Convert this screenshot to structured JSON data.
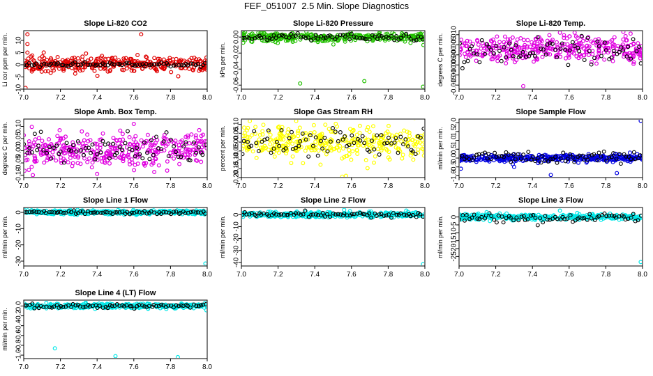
{
  "figure": {
    "title": "FEF_051007  2.5 Min. Slope Diagnostics"
  },
  "colors": {
    "red": "#e00000",
    "green": "#22c000",
    "magenta": "#e000e0",
    "yellow": "#ffff00",
    "blue": "#0000e0",
    "cyan": "#00e8e8",
    "black": "#000000"
  },
  "chart_data": [
    {
      "type": "scatter",
      "title": "Slope Li-820 CO2",
      "ylabel": "Li cor ppm per min.",
      "xlabel": "",
      "color": "red",
      "xlim": [
        7.0,
        8.0
      ],
      "ylim": [
        -10,
        14
      ],
      "x_ticks": [
        "7.0",
        "7.2",
        "7.4",
        "7.6",
        "7.8",
        "8.0"
      ],
      "y_ticks": [
        -10,
        -5,
        0,
        5,
        10
      ],
      "y_tick_labels": [
        "-10",
        "-5",
        "0",
        "5",
        "10"
      ],
      "series": [
        {
          "name": "colored",
          "center": 0.3,
          "spread": 1.8
        },
        {
          "name": "black",
          "center": 0.2,
          "spread": 0.5
        }
      ],
      "outliers": [
        [
          7.01,
          -9.5
        ],
        [
          7.02,
          12.5
        ],
        [
          7.02,
          8.5
        ],
        [
          7.02,
          5
        ],
        [
          7.64,
          12.5
        ],
        [
          7.62,
          4
        ],
        [
          7.6,
          -2.5
        ],
        [
          7.67,
          3
        ]
      ]
    },
    {
      "type": "scatter",
      "title": "Slope Li-820 Pressure",
      "ylabel": "kPa per min.",
      "xlabel": "",
      "color": "green",
      "xlim": [
        7.0,
        8.0
      ],
      "ylim": [
        -0.065,
        0.008
      ],
      "x_ticks": [
        "7.0",
        "7.2",
        "7.4",
        "7.6",
        "7.8",
        "8.0"
      ],
      "y_ticks": [
        -0.06,
        -0.04,
        -0.02,
        0
      ],
      "y_tick_labels": [
        "-0.06",
        "-0.04",
        "-0.02",
        "0.00"
      ],
      "series": [
        {
          "name": "colored",
          "center": 0.0,
          "spread": 0.0035
        },
        {
          "name": "black",
          "center": 0.0,
          "spread": 0.0025
        }
      ],
      "outliers": [
        [
          7.32,
          -0.058
        ],
        [
          7.67,
          -0.055
        ],
        [
          7.99,
          -0.062
        ],
        [
          7.01,
          -0.007
        ],
        [
          7.02,
          0.006
        ]
      ]
    },
    {
      "type": "scatter",
      "title": "Slope Li-820 Temp.",
      "ylabel": "degrees C per min.",
      "xlabel": "",
      "color": "magenta",
      "xlim": [
        7.0,
        8.0
      ],
      "ylim": [
        -0.017,
        0.012
      ],
      "x_ticks": [
        "7.0",
        "7.2",
        "7.4",
        "7.6",
        "7.8",
        "8.0"
      ],
      "y_ticks": [
        -0.015,
        -0.01,
        -0.005,
        0,
        0.005,
        0.01
      ],
      "y_tick_labels": [
        "-0.015",
        "-0.010",
        "-0.005",
        "0.000",
        "0.005",
        "0.010"
      ],
      "series": [
        {
          "name": "colored",
          "center": 0.003,
          "spread": 0.004
        },
        {
          "name": "black",
          "center": 0.002,
          "spread": 0.004
        }
      ],
      "outliers": [
        [
          7.35,
          -0.0155
        ],
        [
          7.63,
          0.011
        ],
        [
          7.55,
          0.011
        ]
      ]
    },
    {
      "type": "scatter",
      "title": "Slope Amb. Box Temp.",
      "ylabel": "degrees C per min.",
      "xlabel": "",
      "color": "magenta",
      "xlim": [
        7.0,
        8.0
      ],
      "ylim": [
        -0.11,
        0.13
      ],
      "x_ticks": [
        "7.0",
        "7.2",
        "7.4",
        "7.6",
        "7.8",
        "8.0"
      ],
      "y_ticks": [
        -0.1,
        -0.05,
        0,
        0.05,
        0.1
      ],
      "y_tick_labels": [
        "-0.10",
        "-0.05",
        "0.00",
        "0.05",
        "0.10"
      ],
      "series": [
        {
          "name": "colored",
          "center": 0.005,
          "spread": 0.045
        },
        {
          "name": "black",
          "center": 0.01,
          "spread": 0.04
        }
      ],
      "outliers": [
        [
          7.6,
          0.11
        ],
        [
          7.05,
          -0.1
        ],
        [
          7.4,
          -0.095
        ]
      ]
    },
    {
      "type": "scatter",
      "title": "Slope Gas Stream RH",
      "ylabel": "percent per min.",
      "xlabel": "",
      "color": "yellow",
      "xlim": [
        7.0,
        8.0
      ],
      "ylim": [
        -0.2,
        0.13
      ],
      "x_ticks": [
        "7.0",
        "7.2",
        "7.4",
        "7.6",
        "7.8",
        "8.0"
      ],
      "y_ticks": [
        -0.2,
        -0.15,
        -0.1,
        -0.05,
        0,
        0.05,
        0.1
      ],
      "y_tick_labels": [
        "-0.20",
        "-0.15",
        "-0.10",
        "-0.05",
        "0.00",
        "0.05",
        "0.10"
      ],
      "series": [
        {
          "name": "colored",
          "center": 0.0,
          "spread": 0.055
        },
        {
          "name": "black",
          "center": 0.0,
          "spread": 0.045
        }
      ],
      "outliers": [
        [
          7.55,
          -0.195
        ],
        [
          7.57,
          -0.19
        ]
      ]
    },
    {
      "type": "scatter",
      "title": "Slope Sample Flow",
      "ylabel": "ml/min per min.",
      "xlabel": "",
      "color": "blue",
      "xlim": [
        7.0,
        8.0
      ],
      "ylim": [
        -1.1,
        2.2
      ],
      "x_ticks": [
        "7.0",
        "7.2",
        "7.4",
        "7.6",
        "7.8",
        "8.0"
      ],
      "y_ticks": [
        -1,
        -0.5,
        0,
        0.5,
        1,
        1.5,
        2
      ],
      "y_tick_labels": [
        "-1.0",
        "-0.5",
        "0.0",
        "0.5",
        "1.0",
        "1.5",
        "2.0"
      ],
      "series": [
        {
          "name": "colored",
          "center": 0.0,
          "spread": 0.12
        },
        {
          "name": "black",
          "center": 0.05,
          "spread": 0.2
        }
      ],
      "outliers": [
        [
          7.99,
          2.1
        ],
        [
          7.5,
          -0.95
        ],
        [
          7.86,
          -0.85
        ],
        [
          7.01,
          -0.6
        ],
        [
          7.3,
          -0.5
        ]
      ]
    },
    {
      "type": "scatter",
      "title": "Slope Line 1 Flow",
      "ylabel": "ml/min per min.",
      "xlabel": "",
      "color": "cyan",
      "xlim": [
        7.0,
        8.0
      ],
      "ylim": [
        -33,
        3
      ],
      "x_ticks": [
        "7.0",
        "7.2",
        "7.4",
        "7.6",
        "7.8",
        "8.0"
      ],
      "y_ticks": [
        -30,
        -20,
        -10,
        0
      ],
      "y_tick_labels": [
        "-30",
        "-20",
        "-10",
        "0"
      ],
      "series": [
        {
          "name": "colored",
          "center": 0.0,
          "spread": 0.8
        },
        {
          "name": "black",
          "center": 0.0,
          "spread": 0.6
        }
      ],
      "outliers": [
        [
          7.99,
          -31.5
        ]
      ]
    },
    {
      "type": "scatter",
      "title": "Slope Line 2 Flow",
      "ylabel": "ml/min per min.",
      "xlabel": "",
      "color": "cyan",
      "xlim": [
        7.0,
        8.0
      ],
      "ylim": [
        -43,
        6
      ],
      "x_ticks": [
        "7.0",
        "7.2",
        "7.4",
        "7.6",
        "7.8",
        "8.0"
      ],
      "y_ticks": [
        -40,
        -30,
        -20,
        -10,
        0
      ],
      "y_tick_labels": [
        "-40",
        "-30",
        "-20",
        "-10",
        "0"
      ],
      "series": [
        {
          "name": "colored",
          "center": 0.0,
          "spread": 1.4
        },
        {
          "name": "black",
          "center": 0.0,
          "spread": 1.4
        }
      ],
      "outliers": [
        [
          7.99,
          -41.5
        ],
        [
          7.56,
          4
        ]
      ]
    },
    {
      "type": "scatter",
      "title": "Slope Line 3 Flow",
      "ylabel": "ml/min per min.",
      "xlabel": "",
      "color": "cyan",
      "xlim": [
        7.0,
        8.0
      ],
      "ylim": [
        -31,
        6
      ],
      "x_ticks": [
        "7.0",
        "7.2",
        "7.4",
        "7.6",
        "7.8",
        "8.0"
      ],
      "y_ticks": [
        -25,
        -20,
        -15,
        -10,
        -5,
        0
      ],
      "y_tick_labels": [
        "-25",
        "-20",
        "-15",
        "-10",
        "-5",
        "0"
      ],
      "series": [
        {
          "name": "colored",
          "center": 0.0,
          "spread": 1.1
        },
        {
          "name": "black",
          "center": -0.5,
          "spread": 1.8
        }
      ],
      "outliers": [
        [
          7.99,
          -28.5
        ],
        [
          7.15,
          3
        ],
        [
          7.55,
          4
        ]
      ]
    },
    {
      "type": "scatter",
      "title": "Slope Line 4 (LT) Flow",
      "ylabel": "ml/min per min.",
      "xlabel": "",
      "color": "cyan",
      "xlim": [
        7.0,
        8.0
      ],
      "ylim": [
        -1.07,
        0.12
      ],
      "x_ticks": [
        "7.0",
        "7.2",
        "7.4",
        "7.6",
        "7.8",
        "8.0"
      ],
      "y_ticks": [
        -1,
        -0.8,
        -0.6,
        -0.4,
        -0.2,
        0
      ],
      "y_tick_labels": [
        "-1.0",
        "-0.8",
        "-0.6",
        "-0.4",
        "-0.2",
        "0.0"
      ],
      "series": [
        {
          "name": "colored",
          "center": 0.0,
          "spread": 0.03
        },
        {
          "name": "black",
          "center": 0.0,
          "spread": 0.025
        }
      ],
      "outliers": [
        [
          7.17,
          -0.86
        ],
        [
          7.5,
          -1.02
        ],
        [
          7.84,
          -1.04
        ]
      ]
    }
  ]
}
